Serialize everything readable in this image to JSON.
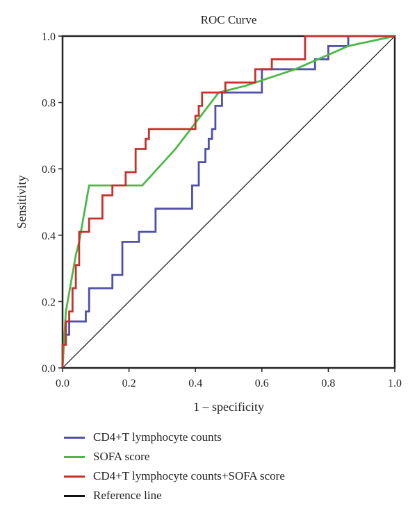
{
  "chart_data": {
    "type": "line",
    "title": "ROC Curve",
    "xlabel": "1 – specificity",
    "ylabel": "Sensitivity",
    "xlim": [
      0,
      1
    ],
    "ylim": [
      0,
      1
    ],
    "xticks": [
      "0.0",
      "0.2",
      "0.4",
      "0.6",
      "0.8",
      "1.0"
    ],
    "yticks": [
      "0.0",
      "0.2",
      "0.4",
      "0.6",
      "0.8",
      "1.0"
    ],
    "grid": false,
    "legend_position": "bottom",
    "series": [
      {
        "name": "CD4+T lymphocyte counts",
        "color": "#5050a8",
        "x": [
          0,
          0,
          0.01,
          0.01,
          0.02,
          0.02,
          0.03,
          0.03,
          0.07,
          0.07,
          0.08,
          0.08,
          0.15,
          0.15,
          0.18,
          0.18,
          0.23,
          0.23,
          0.28,
          0.28,
          0.39,
          0.39,
          0.41,
          0.41,
          0.43,
          0.43,
          0.44,
          0.44,
          0.45,
          0.45,
          0.46,
          0.46,
          0.48,
          0.48,
          0.5,
          0.5,
          0.6,
          0.6,
          0.76,
          0.76,
          0.8,
          0.8,
          0.86,
          0.86,
          1.0
        ],
        "y": [
          0,
          0.07,
          0.07,
          0.1,
          0.1,
          0.14,
          0.14,
          0.14,
          0.14,
          0.17,
          0.17,
          0.24,
          0.24,
          0.28,
          0.28,
          0.38,
          0.38,
          0.41,
          0.41,
          0.48,
          0.48,
          0.55,
          0.55,
          0.62,
          0.62,
          0.66,
          0.66,
          0.69,
          0.69,
          0.72,
          0.72,
          0.79,
          0.79,
          0.83,
          0.83,
          0.83,
          0.83,
          0.9,
          0.9,
          0.93,
          0.93,
          0.97,
          0.97,
          1.0,
          1.0
        ]
      },
      {
        "name": "SOFA score",
        "color": "#4cb848",
        "x": [
          0,
          0.01,
          0.04,
          0.05,
          0.08,
          0.24,
          0.34,
          0.47,
          0.55,
          0.7,
          0.86,
          1.0
        ],
        "y": [
          0,
          0.17,
          0.34,
          0.38,
          0.55,
          0.55,
          0.66,
          0.83,
          0.85,
          0.9,
          0.97,
          1.0
        ]
      },
      {
        "name": "CD4+T lymphocyte counts+SOFA score",
        "color": "#c8302c",
        "x": [
          0,
          0,
          0.01,
          0.01,
          0.02,
          0.02,
          0.03,
          0.03,
          0.04,
          0.04,
          0.05,
          0.05,
          0.06,
          0.06,
          0.08,
          0.08,
          0.12,
          0.12,
          0.15,
          0.15,
          0.19,
          0.19,
          0.22,
          0.22,
          0.25,
          0.25,
          0.26,
          0.26,
          0.28,
          0.28,
          0.4,
          0.4,
          0.41,
          0.41,
          0.42,
          0.42,
          0.49,
          0.49,
          0.58,
          0.58,
          0.63,
          0.63,
          0.73,
          0.73,
          1.0
        ],
        "y": [
          0,
          0.07,
          0.07,
          0.14,
          0.14,
          0.17,
          0.17,
          0.24,
          0.24,
          0.31,
          0.31,
          0.41,
          0.41,
          0.41,
          0.41,
          0.45,
          0.45,
          0.52,
          0.52,
          0.55,
          0.55,
          0.59,
          0.59,
          0.66,
          0.66,
          0.69,
          0.69,
          0.72,
          0.72,
          0.72,
          0.72,
          0.76,
          0.76,
          0.79,
          0.79,
          0.83,
          0.83,
          0.86,
          0.86,
          0.9,
          0.9,
          0.93,
          0.93,
          1.0,
          1.0
        ]
      },
      {
        "name": "Reference line",
        "color": "#111111",
        "x": [
          0,
          1
        ],
        "y": [
          0,
          1
        ]
      }
    ]
  }
}
